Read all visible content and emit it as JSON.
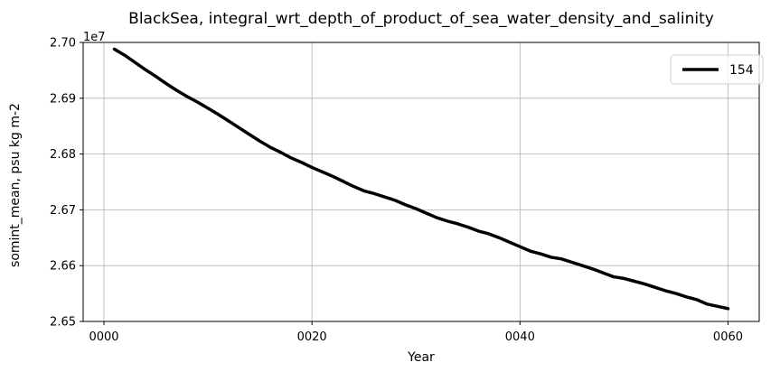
{
  "chart_data": {
    "type": "line",
    "title": "BlackSea, integral_wrt_depth_of_product_of_sea_water_density_and_salinity",
    "xlabel": "Year",
    "ylabel": "somint_mean, psu kg m-2",
    "y_offset_label": "1e7",
    "xlim": [
      -2,
      63
    ],
    "ylim": [
      26500000,
      27000000
    ],
    "x_ticks": [
      {
        "value": 0,
        "label": "0000"
      },
      {
        "value": 20,
        "label": "0020"
      },
      {
        "value": 40,
        "label": "0040"
      },
      {
        "value": 60,
        "label": "0060"
      }
    ],
    "y_ticks": [
      {
        "value": 26500000,
        "label": "2.65"
      },
      {
        "value": 26600000,
        "label": "2.66"
      },
      {
        "value": 26700000,
        "label": "2.67"
      },
      {
        "value": 26800000,
        "label": "2.68"
      },
      {
        "value": 26900000,
        "label": "2.69"
      },
      {
        "value": 27000000,
        "label": "2.70"
      }
    ],
    "grid": true,
    "legend_position": "top-right",
    "series": [
      {
        "name": "154",
        "color": "#000000",
        "x": [
          1,
          2,
          3,
          4,
          5,
          6,
          7,
          8,
          9,
          10,
          11,
          12,
          13,
          14,
          15,
          16,
          17,
          18,
          19,
          20,
          21,
          22,
          23,
          24,
          25,
          26,
          27,
          28,
          29,
          30,
          31,
          32,
          33,
          34,
          35,
          36,
          37,
          38,
          39,
          40,
          41,
          42,
          43,
          44,
          45,
          46,
          47,
          48,
          49,
          50,
          51,
          52,
          53,
          54,
          55,
          56,
          57,
          58,
          59,
          60
        ],
        "y": [
          26988000,
          26977000,
          26964000,
          26951000,
          26939000,
          26926000,
          26914000,
          26903000,
          26893000,
          26882000,
          26871000,
          26859000,
          26847000,
          26835000,
          26823000,
          26812000,
          26803000,
          26793000,
          26785000,
          26776000,
          26768000,
          26760000,
          26751000,
          26742000,
          26734000,
          26729000,
          26723000,
          26717000,
          26709000,
          26702000,
          26694000,
          26686000,
          26680000,
          26675000,
          26669000,
          26662000,
          26657000,
          26650000,
          26642000,
          26634000,
          26626000,
          26621000,
          26615000,
          26612000,
          26606000,
          26600000,
          26594000,
          26587000,
          26580000,
          26577000,
          26572000,
          26567000,
          26561000,
          26555000,
          26550000,
          26544000,
          26539000,
          26531000,
          26527000,
          26523000
        ]
      }
    ]
  }
}
